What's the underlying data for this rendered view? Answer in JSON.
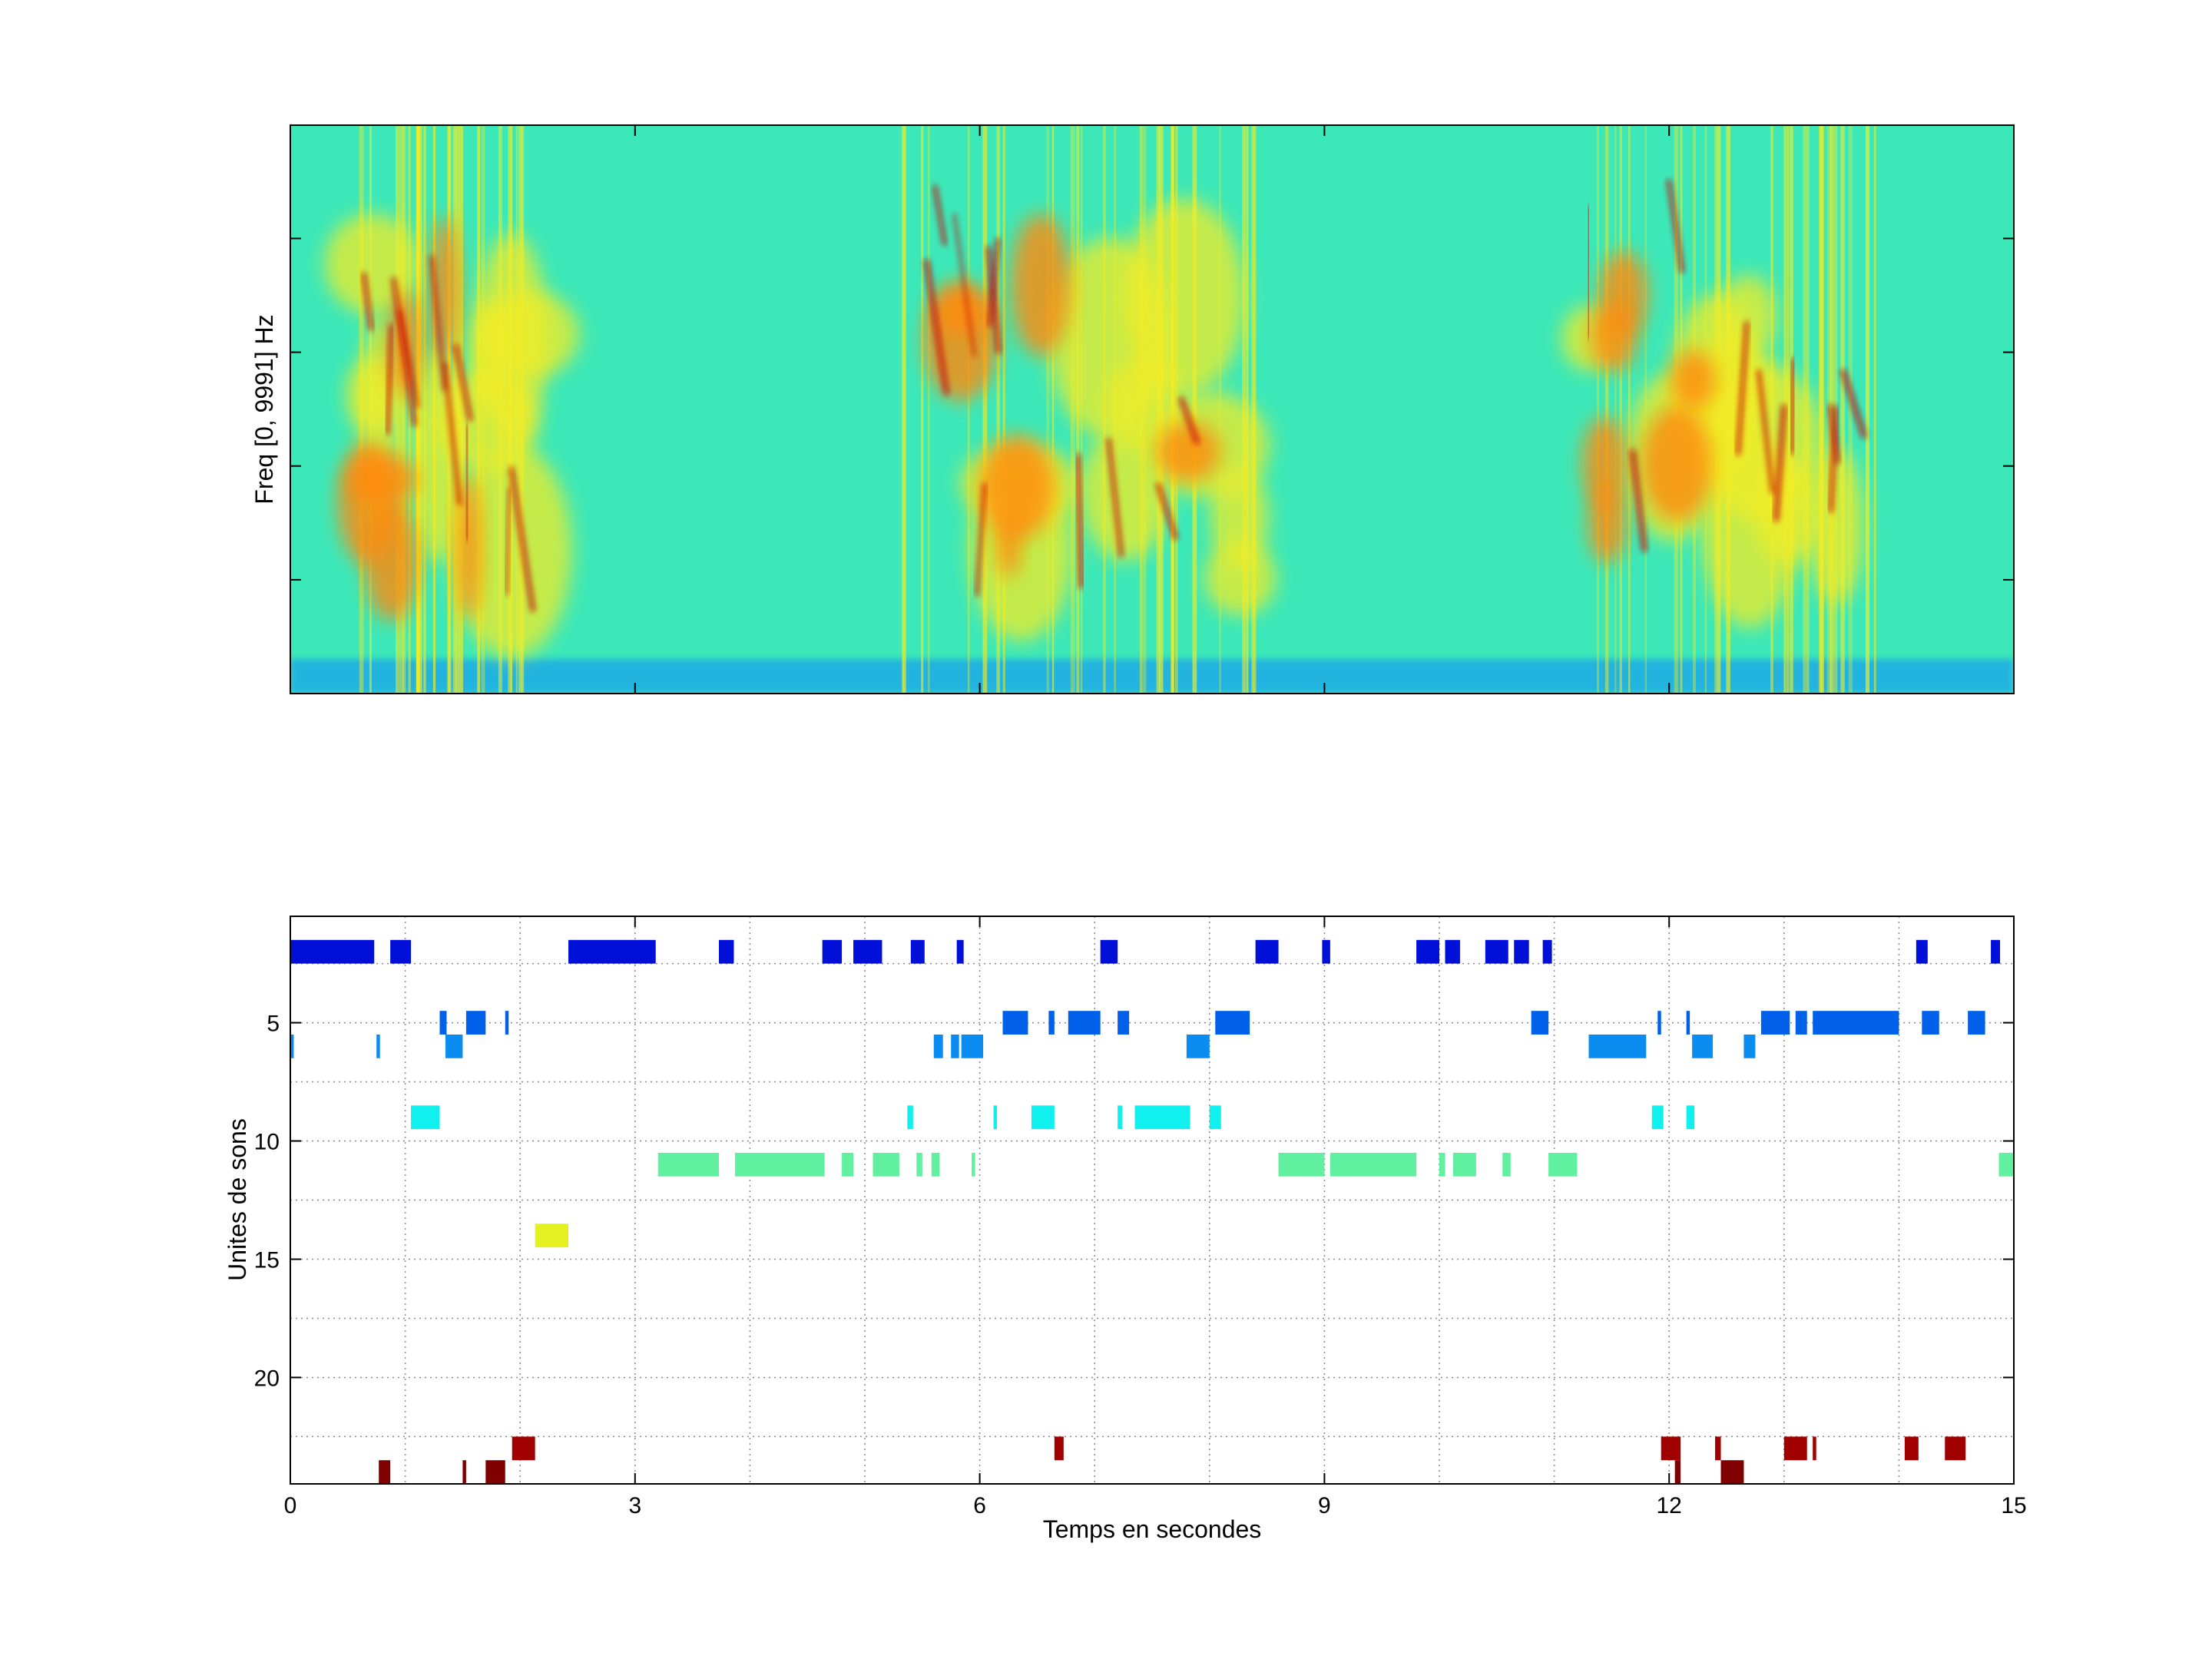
{
  "figure": {
    "background": "#ffffff"
  },
  "chart_data": [
    {
      "type": "heatmap",
      "title": "",
      "xlabel": "",
      "ylabel": "Freq [0, 9991] Hz",
      "xlim": [
        0,
        15
      ],
      "ylim": [
        0,
        9991
      ],
      "x_ticks": [
        0,
        3,
        6,
        9,
        12,
        15
      ],
      "x_tick_labels_shown": false,
      "y_tick_labels_shown": false,
      "colormap": "jet",
      "colors": {
        "background_level": "#3de8b8",
        "low_band": "#1aa8e8",
        "mid": "#f2ec25",
        "high": "#ff8a10",
        "peak": "#c80e0e"
      },
      "call_segments_seconds": [
        {
          "start": 0.6,
          "end": 2.1
        },
        {
          "start": 5.3,
          "end": 8.4
        },
        {
          "start": 11.2,
          "end": 13.8
        }
      ]
    },
    {
      "type": "scatter",
      "title": "",
      "xlabel": "Temps en secondes",
      "ylabel": "Unites de sons",
      "xlim": [
        0,
        15
      ],
      "ylim": [
        0.5,
        24.5
      ],
      "y_reversed": true,
      "x_ticks": [
        0,
        3,
        6,
        9,
        12,
        15
      ],
      "y_ticks": [
        5,
        10,
        15,
        20
      ],
      "grid": true,
      "grid_style": "dotted",
      "colormap": "jet",
      "unit_colors": {
        "2": "#0010d8",
        "5": "#0060ea",
        "6": "#0a8cf0",
        "9": "#10f0ee",
        "11": "#60f0a0",
        "14": "#e4f020",
        "23": "#a00000",
        "24": "#800000"
      },
      "segments": [
        {
          "unit": 2,
          "intervals": [
            [
              0.0,
              0.73
            ],
            [
              0.87,
              1.05
            ],
            [
              2.42,
              3.18
            ],
            [
              3.73,
              3.86
            ],
            [
              4.63,
              4.8
            ],
            [
              4.9,
              5.15
            ],
            [
              5.4,
              5.52
            ],
            [
              5.8,
              5.86
            ],
            [
              7.05,
              7.2
            ],
            [
              8.4,
              8.6
            ],
            [
              8.98,
              9.05
            ],
            [
              9.8,
              10.0
            ],
            [
              10.05,
              10.18
            ],
            [
              10.4,
              10.6
            ],
            [
              10.65,
              10.78
            ],
            [
              10.9,
              10.98
            ],
            [
              14.15,
              14.25
            ],
            [
              14.8,
              14.88
            ]
          ]
        },
        {
          "unit": 5,
          "intervals": [
            [
              1.3,
              1.36
            ],
            [
              1.53,
              1.7
            ],
            [
              1.87,
              1.9
            ],
            [
              6.2,
              6.42
            ],
            [
              6.6,
              6.65
            ],
            [
              6.77,
              7.05
            ],
            [
              7.2,
              7.3
            ],
            [
              8.05,
              8.35
            ],
            [
              10.8,
              10.95
            ],
            [
              11.9,
              11.93
            ],
            [
              12.15,
              12.18
            ],
            [
              12.8,
              13.05
            ],
            [
              13.1,
              13.2
            ],
            [
              13.25,
              14.0
            ],
            [
              14.2,
              14.35
            ],
            [
              14.6,
              14.75
            ]
          ]
        },
        {
          "unit": 6,
          "intervals": [
            [
              0.0,
              0.03
            ],
            [
              0.75,
              0.78
            ],
            [
              1.35,
              1.5
            ],
            [
              5.6,
              5.68
            ],
            [
              5.75,
              5.82
            ],
            [
              5.84,
              6.03
            ],
            [
              7.8,
              8.0
            ],
            [
              11.3,
              11.8
            ],
            [
              12.2,
              12.38
            ],
            [
              12.65,
              12.75
            ]
          ]
        },
        {
          "unit": 9,
          "intervals": [
            [
              1.05,
              1.3
            ],
            [
              5.37,
              5.42
            ],
            [
              6.12,
              6.15
            ],
            [
              6.45,
              6.65
            ],
            [
              7.2,
              7.24
            ],
            [
              7.35,
              7.83
            ],
            [
              8.0,
              8.1
            ],
            [
              11.85,
              11.95
            ],
            [
              12.15,
              12.22
            ]
          ]
        },
        {
          "unit": 11,
          "intervals": [
            [
              3.2,
              3.73
            ],
            [
              3.87,
              4.65
            ],
            [
              4.8,
              4.9
            ],
            [
              5.07,
              5.3
            ],
            [
              5.45,
              5.5
            ],
            [
              5.58,
              5.65
            ],
            [
              5.93,
              5.96
            ],
            [
              8.6,
              9.0
            ],
            [
              9.05,
              9.8
            ],
            [
              10.0,
              10.05
            ],
            [
              10.12,
              10.32
            ],
            [
              10.55,
              10.62
            ],
            [
              10.95,
              11.2
            ],
            [
              14.87,
              15.0
            ]
          ]
        },
        {
          "unit": 14,
          "intervals": [
            [
              2.13,
              2.42
            ]
          ]
        },
        {
          "unit": 23,
          "intervals": [
            [
              1.93,
              2.13
            ],
            [
              6.65,
              6.73
            ],
            [
              11.93,
              12.1
            ],
            [
              12.4,
              12.45
            ],
            [
              13.0,
              13.2
            ],
            [
              13.25,
              13.28
            ],
            [
              14.05,
              14.17
            ],
            [
              14.4,
              14.58
            ]
          ]
        },
        {
          "unit": 24,
          "intervals": [
            [
              0.77,
              0.87
            ],
            [
              1.5,
              1.53
            ],
            [
              1.7,
              1.87
            ],
            [
              12.05,
              12.1
            ],
            [
              12.45,
              12.65
            ]
          ]
        }
      ]
    }
  ]
}
